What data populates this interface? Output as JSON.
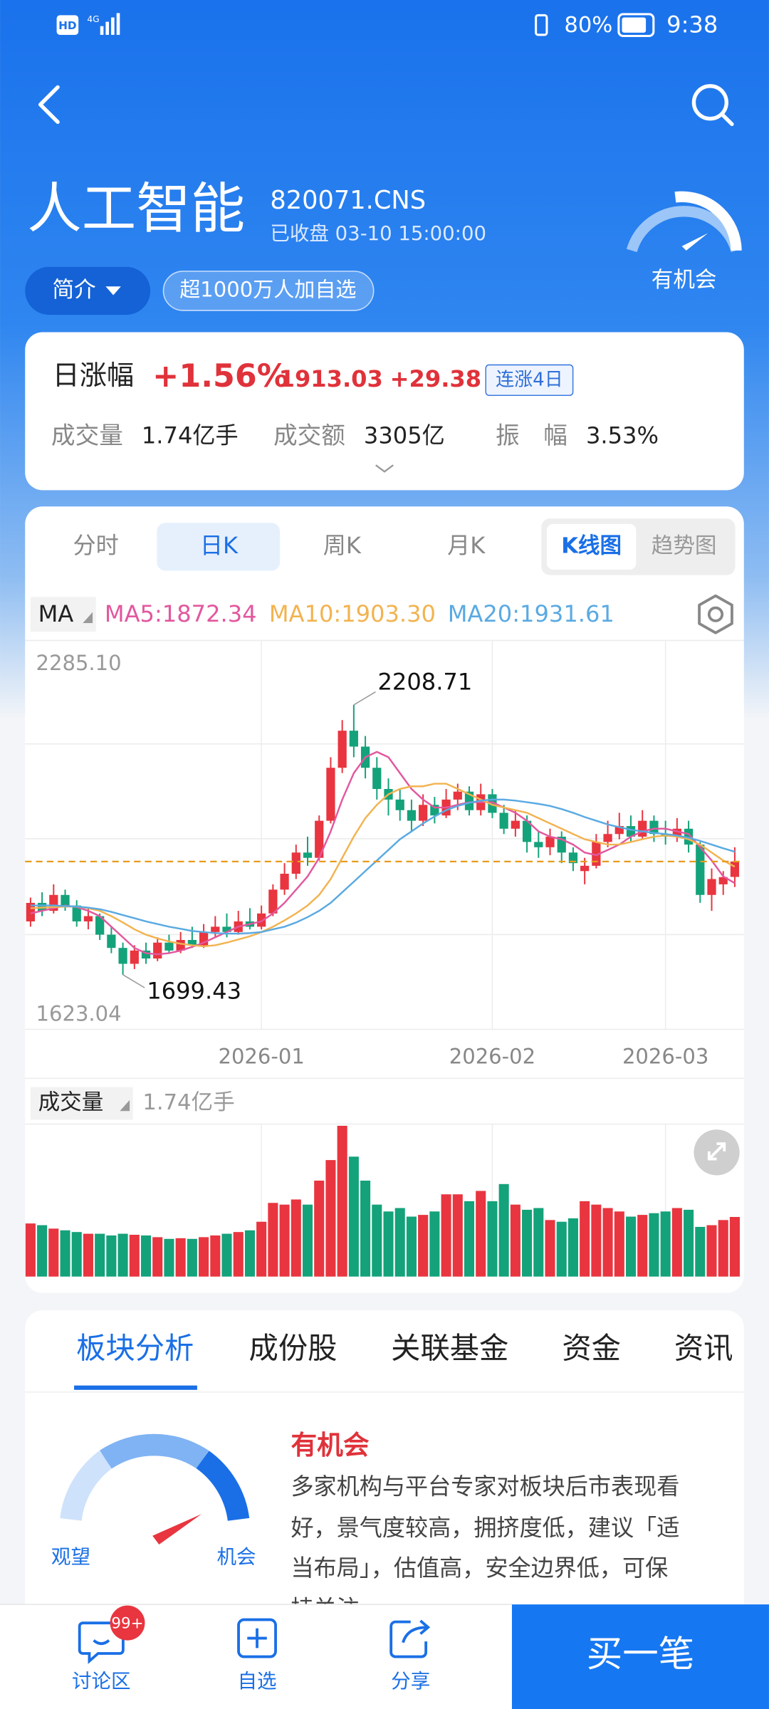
{
  "status_bar": {
    "network": "4G",
    "battery": "80%",
    "time": "9:38",
    "hd": "HD"
  },
  "header": {
    "title": "人工智能",
    "code": "820071.CNS",
    "status": "已收盘 03-10 15:00:00",
    "signal": "有机会",
    "intro": "简介",
    "followers": "超1000万人加自选"
  },
  "stats": {
    "change_label": "日涨幅",
    "change_pct": "+1.56%",
    "price": "1913.03",
    "change": "+29.38",
    "streak": "连涨4日",
    "items": [
      {
        "label": "成交量",
        "value": "1.74亿手"
      },
      {
        "label": "成交额",
        "value": "3305亿"
      },
      {
        "label": "振　幅",
        "value": "3.53%"
      }
    ]
  },
  "chart_tabs": [
    "分时",
    "日K",
    "周K",
    "月K"
  ],
  "view_toggle": [
    "K线图",
    "趋势图"
  ],
  "kline": {
    "type": "candlestick",
    "indicator": "MA",
    "up_color": "#e8353f",
    "down_color": "#14a27a",
    "ylim": [
      1623.04,
      2285.1
    ],
    "yticks": [
      {
        "value": 2285.1,
        "label": "2285.10"
      },
      {
        "value": 1623.04,
        "label": "1623.04"
      }
    ],
    "categories": [
      null,
      null,
      null,
      null,
      null,
      null,
      null,
      null,
      null,
      null,
      null,
      null,
      null,
      null,
      null,
      null,
      null,
      null,
      null,
      null,
      "2026-01",
      null,
      null,
      null,
      null,
      null,
      null,
      null,
      null,
      null,
      null,
      null,
      null,
      null,
      null,
      null,
      null,
      null,
      null,
      null,
      "2026-02",
      null,
      null,
      null,
      null,
      null,
      null,
      null,
      null,
      null,
      null,
      null,
      null,
      null,
      null,
      "2026-03",
      null,
      null,
      null,
      null,
      null,
      null
    ],
    "open": [
      1800,
      1835,
      1820,
      1850,
      1830,
      1800,
      1810,
      1775,
      1750,
      1720,
      1745,
      1730,
      1760,
      1745,
      1765,
      1755,
      1780,
      1790,
      1780,
      1800,
      1790,
      1815,
      1860,
      1890,
      1930,
      1920,
      1990,
      2090,
      2160,
      2130,
      2090,
      2050,
      2030,
      2010,
      1990,
      2020,
      2000,
      2030,
      2045,
      2010,
      2040,
      2005,
      1975,
      1990,
      1950,
      1940,
      1960,
      1930,
      1895,
      1905,
      1950,
      1965,
      1980,
      1960,
      1990,
      1965,
      1960,
      1975,
      1945,
      1850,
      1870,
      1884
    ],
    "close": [
      1835,
      1820,
      1850,
      1830,
      1800,
      1810,
      1775,
      1750,
      1720,
      1745,
      1730,
      1760,
      1745,
      1765,
      1755,
      1780,
      1790,
      1780,
      1800,
      1790,
      1815,
      1860,
      1890,
      1930,
      1920,
      1990,
      2090,
      2160,
      2130,
      2090,
      2050,
      2030,
      2010,
      1990,
      2020,
      2000,
      2030,
      2045,
      2010,
      2040,
      2005,
      1975,
      1990,
      1950,
      1940,
      1960,
      1930,
      1910,
      1905,
      1950,
      1965,
      1980,
      1960,
      1990,
      1965,
      1960,
      1975,
      1945,
      1850,
      1880,
      1883.65,
      1913.03
    ],
    "high": [
      1845,
      1855,
      1870,
      1860,
      1840,
      1825,
      1815,
      1790,
      1760,
      1755,
      1760,
      1770,
      1775,
      1780,
      1790,
      1795,
      1810,
      1815,
      1820,
      1825,
      1830,
      1870,
      1910,
      1945,
      1960,
      2000,
      2110,
      2180,
      2208.71,
      2150,
      2110,
      2070,
      2050,
      2030,
      2040,
      2035,
      2050,
      2060,
      2055,
      2060,
      2050,
      2020,
      2010,
      2000,
      1970,
      1975,
      1970,
      1940,
      1920,
      1965,
      1990,
      2005,
      2000,
      2010,
      2000,
      1990,
      1995,
      1990,
      1950,
      1900,
      1895,
      1940
    ],
    "low": [
      1790,
      1810,
      1815,
      1820,
      1790,
      1785,
      1765,
      1740,
      1699.43,
      1710,
      1720,
      1725,
      1740,
      1740,
      1750,
      1750,
      1770,
      1770,
      1775,
      1785,
      1785,
      1810,
      1850,
      1880,
      1905,
      1915,
      1985,
      2080,
      2110,
      2070,
      2030,
      2000,
      1990,
      1970,
      1980,
      1985,
      1995,
      2010,
      2000,
      2000,
      1995,
      1965,
      1960,
      1930,
      1920,
      1925,
      1910,
      1895,
      1870,
      1900,
      1940,
      1955,
      1950,
      1955,
      1950,
      1945,
      1950,
      1930,
      1835,
      1820,
      1850,
      1865
    ],
    "ma": [
      {
        "name": "MA5:1872.34",
        "color": "#e2589f",
        "values": [
          1815,
          1820,
          1825,
          1830,
          1827,
          1820,
          1810,
          1790,
          1770,
          1750,
          1740,
          1738,
          1740,
          1745,
          1752,
          1760,
          1770,
          1780,
          1790,
          1795,
          1800,
          1815,
          1835,
          1860,
          1885,
          1920,
          1970,
          2030,
          2080,
          2110,
          2120,
          2110,
          2080,
          2050,
          2030,
          2015,
          2015,
          2020,
          2025,
          2025,
          2025,
          2015,
          2005,
          1990,
          1970,
          1960,
          1955,
          1945,
          1930,
          1925,
          1935,
          1945,
          1960,
          1970,
          1975,
          1975,
          1970,
          1965,
          1940,
          1915,
          1885,
          1872.34
        ]
      },
      {
        "name": "MA10:1903.30",
        "color": "#f2b350",
        "values": [
          1825,
          1826,
          1827,
          1828,
          1828,
          1825,
          1820,
          1810,
          1798,
          1785,
          1775,
          1768,
          1762,
          1758,
          1755,
          1753,
          1755,
          1760,
          1766,
          1772,
          1780,
          1790,
          1802,
          1815,
          1830,
          1850,
          1880,
          1920,
          1960,
          1995,
          2020,
          2040,
          2050,
          2055,
          2055,
          2060,
          2060,
          2050,
          2040,
          2030,
          2020,
          2015,
          2010,
          2005,
          1995,
          1985,
          1975,
          1965,
          1955,
          1950,
          1945,
          1945,
          1950,
          1955,
          1960,
          1962,
          1960,
          1955,
          1945,
          1930,
          1915,
          1903.3
        ]
      },
      {
        "name": "MA20:1931.61",
        "color": "#5aaae2",
        "values": [
          1830,
          1830,
          1830,
          1829,
          1828,
          1826,
          1823,
          1818,
          1812,
          1806,
          1800,
          1795,
          1790,
          1786,
          1782,
          1780,
          1778,
          1777,
          1777,
          1778,
          1780,
          1785,
          1790,
          1798,
          1808,
          1820,
          1835,
          1855,
          1875,
          1895,
          1915,
          1935,
          1955,
          1970,
          1985,
          1998,
          2010,
          2018,
          2024,
          2028,
          2030,
          2030,
          2028,
          2025,
          2022,
          2018,
          2012,
          2005,
          1997,
          1990,
          1983,
          1978,
          1973,
          1970,
          1967,
          1965,
          1962,
          1958,
          1952,
          1945,
          1938,
          1931.61
        ]
      }
    ],
    "volume_label": "成交量",
    "volume_value": "1.74亿手",
    "vlim": [
      0,
      4.45
    ],
    "volumes": [
      1.55,
      1.5,
      1.4,
      1.35,
      1.3,
      1.25,
      1.25,
      1.2,
      1.25,
      1.22,
      1.2,
      1.15,
      1.1,
      1.12,
      1.1,
      1.15,
      1.2,
      1.25,
      1.3,
      1.35,
      1.6,
      2.15,
      2.1,
      2.25,
      2.1,
      2.8,
      3.4,
      4.4,
      3.5,
      2.8,
      2.1,
      1.9,
      2.0,
      1.75,
      1.8,
      1.9,
      2.4,
      2.4,
      2.2,
      2.5,
      2.2,
      2.7,
      2.1,
      1.95,
      2.0,
      1.65,
      1.6,
      1.7,
      2.2,
      2.1,
      2.0,
      1.9,
      1.75,
      1.8,
      1.85,
      1.9,
      2.0,
      1.95,
      1.45,
      1.5,
      1.65,
      1.74
    ]
  },
  "section_tabs": [
    "板块分析",
    "成份股",
    "关联基金",
    "资金",
    "资讯"
  ],
  "analysis": {
    "gauge_low": "观望",
    "gauge_high": "机会",
    "verdict": "有机会",
    "lines": [
      "多家机构与平台专家对板块后市表现看",
      "好，景气度较高，拥挤度低，建议「适",
      "当布局」，估值高，安全边界低，可保",
      "持关注"
    ]
  },
  "bottom_nav": {
    "items": [
      "讨论区",
      "自选",
      "分享"
    ],
    "badge": "99+",
    "buy": "买一笔"
  }
}
